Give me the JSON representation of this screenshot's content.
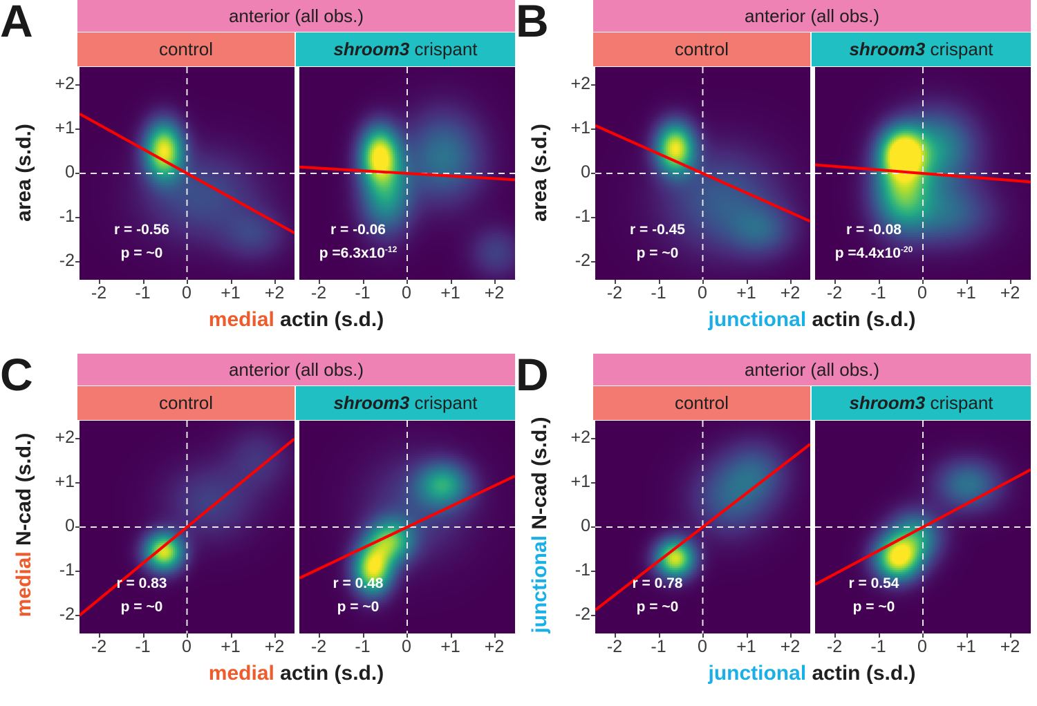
{
  "colors": {
    "strip_top": "#EE82B5",
    "strip_control": "#F27A70",
    "strip_crispant": "#1FBFC3",
    "medial": "#EE5B2C",
    "junctional": "#1AAFE6",
    "regression_line": "#FF0000"
  },
  "shared": {
    "strip_top": "anterior (all obs.)",
    "strip_control": "control",
    "strip_crispant_italic": "shroom3",
    "strip_crispant_rest": " crispant",
    "x_ticks": [
      "-2",
      "-1",
      "0",
      "+1",
      "+2"
    ],
    "y_ticks": [
      "+2",
      "+1",
      "0",
      "-1",
      "-2"
    ]
  },
  "chart_data": [
    {
      "panel": "A",
      "type": "heatmap",
      "title": "anterior (all obs.)",
      "xlabel_highlight": "medial",
      "xlabel_rest": " actin (s.d.)",
      "ylabel_highlight": "",
      "ylabel_rest": "area (s.d.)",
      "xlim": [
        -2.45,
        2.45
      ],
      "ylim": [
        -2.45,
        2.45
      ],
      "facets": [
        {
          "name": "control",
          "r_text": "r = -0.56",
          "p_text": "p = ~0",
          "p_sup": "",
          "slope": -0.56,
          "blobs": [
            {
              "x": -0.55,
              "y": 0.55,
              "sx": 0.3,
              "sy": 0.45,
              "w": 1.0
            },
            {
              "x": 0.3,
              "y": -0.5,
              "sx": 0.9,
              "sy": 0.7,
              "w": 0.25
            },
            {
              "x": 1.5,
              "y": -1.4,
              "sx": 0.5,
              "sy": 0.4,
              "w": 0.18
            }
          ]
        },
        {
          "name": "shroom3 crispant",
          "r_text": "r = -0.06",
          "p_text": "p =6.3x10",
          "p_sup": "-12",
          "slope": -0.06,
          "blobs": [
            {
              "x": -0.65,
              "y": 0.45,
              "sx": 0.3,
              "sy": 0.45,
              "w": 1.0
            },
            {
              "x": -0.5,
              "y": -0.5,
              "sx": 0.4,
              "sy": 0.6,
              "w": 0.55
            },
            {
              "x": 0.8,
              "y": 0.4,
              "sx": 0.6,
              "sy": 0.7,
              "w": 0.4
            },
            {
              "x": 2.0,
              "y": -1.8,
              "sx": 0.4,
              "sy": 0.4,
              "w": 0.2
            }
          ]
        }
      ]
    },
    {
      "panel": "B",
      "type": "heatmap",
      "title": "anterior (all obs.)",
      "xlabel_highlight": "junctional",
      "xlabel_rest": " actin (s.d.)",
      "ylabel_highlight": "",
      "ylabel_rest": "area (s.d.)",
      "xlim": [
        -2.45,
        2.45
      ],
      "ylim": [
        -2.45,
        2.45
      ],
      "facets": [
        {
          "name": "control",
          "r_text": "r = -0.45",
          "p_text": "p = ~0",
          "p_sup": "",
          "slope": -0.45,
          "blobs": [
            {
              "x": -0.65,
              "y": 0.6,
              "sx": 0.3,
              "sy": 0.4,
              "w": 1.0
            },
            {
              "x": 0.4,
              "y": -0.6,
              "sx": 0.9,
              "sy": 0.8,
              "w": 0.3
            },
            {
              "x": 1.3,
              "y": -1.3,
              "sx": 0.5,
              "sy": 0.4,
              "w": 0.25
            }
          ]
        },
        {
          "name": "shroom3 crispant",
          "r_text": "r = -0.08",
          "p_text": "p =4.4x10",
          "p_sup": "-20",
          "slope": -0.08,
          "blobs": [
            {
              "x": -0.5,
              "y": 0.5,
              "sx": 0.35,
              "sy": 0.4,
              "w": 1.0
            },
            {
              "x": -0.5,
              "y": -0.4,
              "sx": 0.45,
              "sy": 0.6,
              "w": 0.7
            },
            {
              "x": 0.3,
              "y": 0.6,
              "sx": 0.6,
              "sy": 0.6,
              "w": 0.5
            },
            {
              "x": 0.5,
              "y": -0.9,
              "sx": 0.7,
              "sy": 0.5,
              "w": 0.35
            }
          ]
        }
      ]
    },
    {
      "panel": "C",
      "type": "heatmap",
      "title": "anterior (all obs.)",
      "xlabel_highlight": "medial",
      "xlabel_rest": " actin (s.d.)",
      "ylabel_highlight": "medial",
      "ylabel_rest": " N-cad (s.d.)",
      "xlim": [
        -2.45,
        2.45
      ],
      "ylim": [
        -2.45,
        2.45
      ],
      "facets": [
        {
          "name": "control",
          "r_text": "r = 0.83",
          "p_text": "p = ~0",
          "p_sup": "",
          "slope": 0.83,
          "blobs": [
            {
              "x": -0.55,
              "y": -0.55,
              "sx": 0.3,
              "sy": 0.3,
              "w": 1.0
            },
            {
              "x": 0.5,
              "y": 0.6,
              "sx": 0.7,
              "sy": 0.6,
              "w": 0.2
            },
            {
              "x": 1.6,
              "y": 1.6,
              "sx": 0.5,
              "sy": 0.5,
              "w": 0.15
            }
          ]
        },
        {
          "name": "shroom3 crispant",
          "r_text": "r = 0.48",
          "p_text": "p = ~0",
          "p_sup": "",
          "slope": 0.48,
          "blobs": [
            {
              "x": -0.8,
              "y": -0.95,
              "sx": 0.3,
              "sy": 0.4,
              "w": 1.0
            },
            {
              "x": -0.4,
              "y": -0.3,
              "sx": 0.35,
              "sy": 0.35,
              "w": 0.7
            },
            {
              "x": 0.8,
              "y": 1.0,
              "sx": 0.4,
              "sy": 0.35,
              "w": 0.55
            },
            {
              "x": 0.2,
              "y": 0.5,
              "sx": 0.8,
              "sy": 0.8,
              "w": 0.2
            }
          ]
        }
      ]
    },
    {
      "panel": "D",
      "type": "heatmap",
      "title": "anterior (all obs.)",
      "xlabel_highlight": "junctional",
      "xlabel_rest": " actin (s.d.)",
      "ylabel_highlight": "junctional",
      "ylabel_rest": " N-cad (s.d.)",
      "xlim": [
        -2.45,
        2.45
      ],
      "ylim": [
        -2.45,
        2.45
      ],
      "facets": [
        {
          "name": "control",
          "r_text": "r = 0.78",
          "p_text": "p = ~0",
          "p_sup": "",
          "slope": 0.78,
          "blobs": [
            {
              "x": -0.65,
              "y": -0.7,
              "sx": 0.3,
              "sy": 0.3,
              "w": 1.0
            },
            {
              "x": 0.6,
              "y": 0.7,
              "sx": 0.6,
              "sy": 0.6,
              "w": 0.3
            },
            {
              "x": 1.2,
              "y": 1.3,
              "sx": 0.5,
              "sy": 0.5,
              "w": 0.25
            }
          ]
        },
        {
          "name": "shroom3 crispant",
          "r_text": "r = 0.54",
          "p_text": "p = ~0",
          "p_sup": "",
          "slope": 0.54,
          "blobs": [
            {
              "x": -0.6,
              "y": -0.7,
              "sx": 0.35,
              "sy": 0.35,
              "w": 1.0
            },
            {
              "x": -0.2,
              "y": -0.2,
              "sx": 0.4,
              "sy": 0.4,
              "w": 0.55
            },
            {
              "x": 1.0,
              "y": 1.0,
              "sx": 0.5,
              "sy": 0.4,
              "w": 0.4
            }
          ]
        }
      ]
    }
  ]
}
